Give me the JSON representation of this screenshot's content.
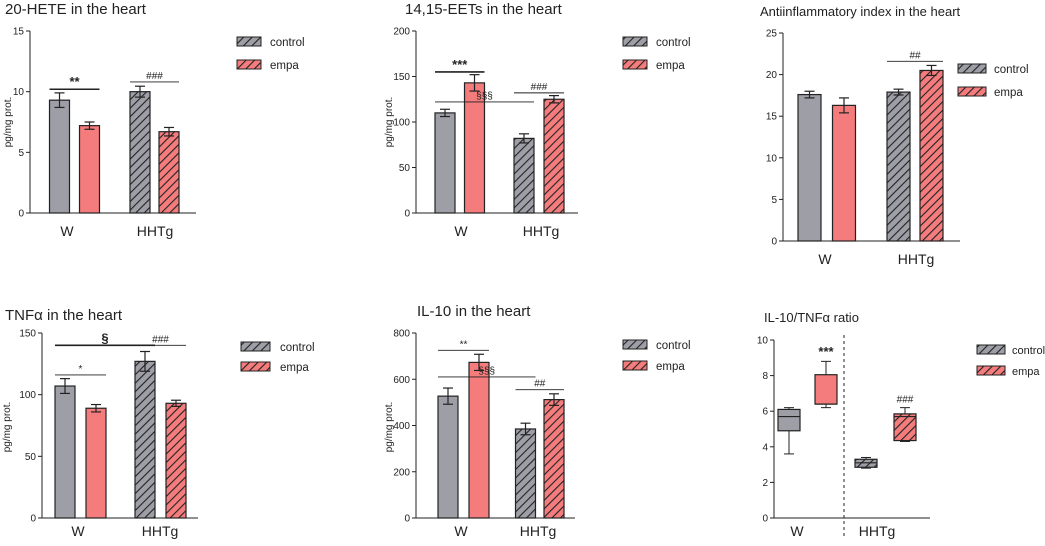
{
  "colors": {
    "control": "#9d9ea6",
    "empa": "#f47c7c",
    "axis": "#222222"
  },
  "group_labels": [
    "W",
    "HHTg"
  ],
  "legend_labels": [
    "control",
    "empa"
  ],
  "chart_data": [
    {
      "id": "p1",
      "type": "bar",
      "title": "20-HETE in the heart",
      "ylabel": "pg/mg prot.",
      "ylim": [
        0,
        15
      ],
      "yticks": [
        0,
        5,
        10,
        15
      ],
      "categories": [
        "W",
        "HHTg"
      ],
      "series": [
        {
          "name": "control",
          "values": [
            9.3,
            10.0
          ],
          "errors": [
            0.6,
            0.45
          ]
        },
        {
          "name": "empa",
          "values": [
            7.2,
            6.7
          ],
          "errors": [
            0.3,
            0.35
          ]
        }
      ],
      "annotations": [
        {
          "text": "**",
          "y": 10.2,
          "from": 0,
          "to": 1,
          "style": "thick"
        },
        {
          "text": "###",
          "y": 10.8,
          "from": 2,
          "to": 3,
          "style": "thin"
        }
      ]
    },
    {
      "id": "p2",
      "type": "bar",
      "title": "14,15-EETs in the heart",
      "ylabel": "pg/mg prot.",
      "ylim": [
        0,
        200
      ],
      "yticks": [
        0,
        50,
        100,
        150,
        200
      ],
      "categories": [
        "W",
        "HHTg"
      ],
      "series": [
        {
          "name": "control",
          "values": [
            110,
            82
          ],
          "errors": [
            4,
            5
          ]
        },
        {
          "name": "empa",
          "values": [
            143,
            125
          ],
          "errors": [
            9,
            4
          ]
        }
      ],
      "annotations": [
        {
          "text": "***",
          "y": 155,
          "from": 0,
          "to": 1,
          "style": "thick"
        },
        {
          "text": "§§§",
          "y": 122,
          "from": 0,
          "to": 2,
          "style": "thin"
        },
        {
          "text": "###",
          "y": 132,
          "from": 2,
          "to": 3,
          "style": "thin"
        }
      ]
    },
    {
      "id": "p3",
      "type": "bar",
      "title": "Antiinflammatory index in the heart",
      "ylabel": "",
      "ylim": [
        0,
        25
      ],
      "yticks": [
        0,
        5,
        10,
        15,
        20,
        25
      ],
      "categories": [
        "W",
        "HHTg"
      ],
      "series": [
        {
          "name": "control",
          "values": [
            17.6,
            17.9
          ],
          "errors": [
            0.4,
            0.35
          ]
        },
        {
          "name": "empa",
          "values": [
            16.3,
            20.5
          ],
          "errors": [
            0.9,
            0.6
          ]
        }
      ],
      "annotations": [
        {
          "text": "##",
          "y": 21.6,
          "from": 2,
          "to": 3,
          "style": "thin"
        }
      ]
    },
    {
      "id": "p4",
      "type": "bar",
      "title": "TNFα in the heart",
      "ylabel": "pg/mg prot.",
      "ylim": [
        0,
        150
      ],
      "yticks": [
        0,
        50,
        100,
        150
      ],
      "categories": [
        "W",
        "HHTg"
      ],
      "series": [
        {
          "name": "control",
          "values": [
            107,
            127
          ],
          "errors": [
            6,
            8
          ]
        },
        {
          "name": "empa",
          "values": [
            89,
            93
          ],
          "errors": [
            3,
            2.5
          ]
        }
      ],
      "annotations": [
        {
          "text": "§",
          "y": 140,
          "from": 0,
          "to": 2,
          "style": "thick"
        },
        {
          "text": "*",
          "y": 116,
          "from": 0,
          "to": 1,
          "style": "thin"
        },
        {
          "text": "###",
          "y": 140,
          "from": 2,
          "to": 3,
          "style": "thin"
        }
      ]
    },
    {
      "id": "p5",
      "type": "bar",
      "title": "IL-10 in the heart",
      "ylabel": "pg/mg prot.",
      "ylim": [
        0,
        800
      ],
      "yticks": [
        0,
        200,
        400,
        600,
        800
      ],
      "categories": [
        "W",
        "HHTg"
      ],
      "series": [
        {
          "name": "control",
          "values": [
            527,
            385
          ],
          "errors": [
            35,
            25
          ]
        },
        {
          "name": "empa",
          "values": [
            673,
            512
          ],
          "errors": [
            35,
            25
          ]
        }
      ],
      "annotations": [
        {
          "text": "**",
          "y": 725,
          "from": 0,
          "to": 1,
          "style": "thin"
        },
        {
          "text": "§§§",
          "y": 610,
          "from": 0,
          "to": 2,
          "style": "thin"
        },
        {
          "text": "##",
          "y": 555,
          "from": 2,
          "to": 3,
          "style": "thin"
        }
      ]
    },
    {
      "id": "p6",
      "type": "box",
      "title": "IL-10/TNFα ratio",
      "ylabel": "",
      "ylim": [
        0,
        10
      ],
      "yticks": [
        0,
        2,
        4,
        6,
        8,
        10
      ],
      "categories": [
        "W",
        "HHTg"
      ],
      "boxes": [
        {
          "name": "control",
          "group": "W",
          "min": 3.6,
          "q1": 4.9,
          "median": 5.7,
          "q3": 6.1,
          "max": 6.2
        },
        {
          "name": "empa",
          "group": "W",
          "min": 6.2,
          "q1": 6.4,
          "median": 6.4,
          "q3": 8.05,
          "max": 8.8
        },
        {
          "name": "control",
          "group": "HHTg",
          "min": 2.8,
          "q1": 2.85,
          "median": 3.1,
          "q3": 3.3,
          "max": 3.4
        },
        {
          "name": "empa",
          "group": "HHTg",
          "min": 4.3,
          "q1": 4.35,
          "median": 5.7,
          "q3": 5.85,
          "max": 6.2
        }
      ],
      "annotations": [
        {
          "text": "***",
          "y": 9.1,
          "box": 1
        },
        {
          "text": "###",
          "y": 6.5,
          "box": 3
        }
      ]
    }
  ]
}
